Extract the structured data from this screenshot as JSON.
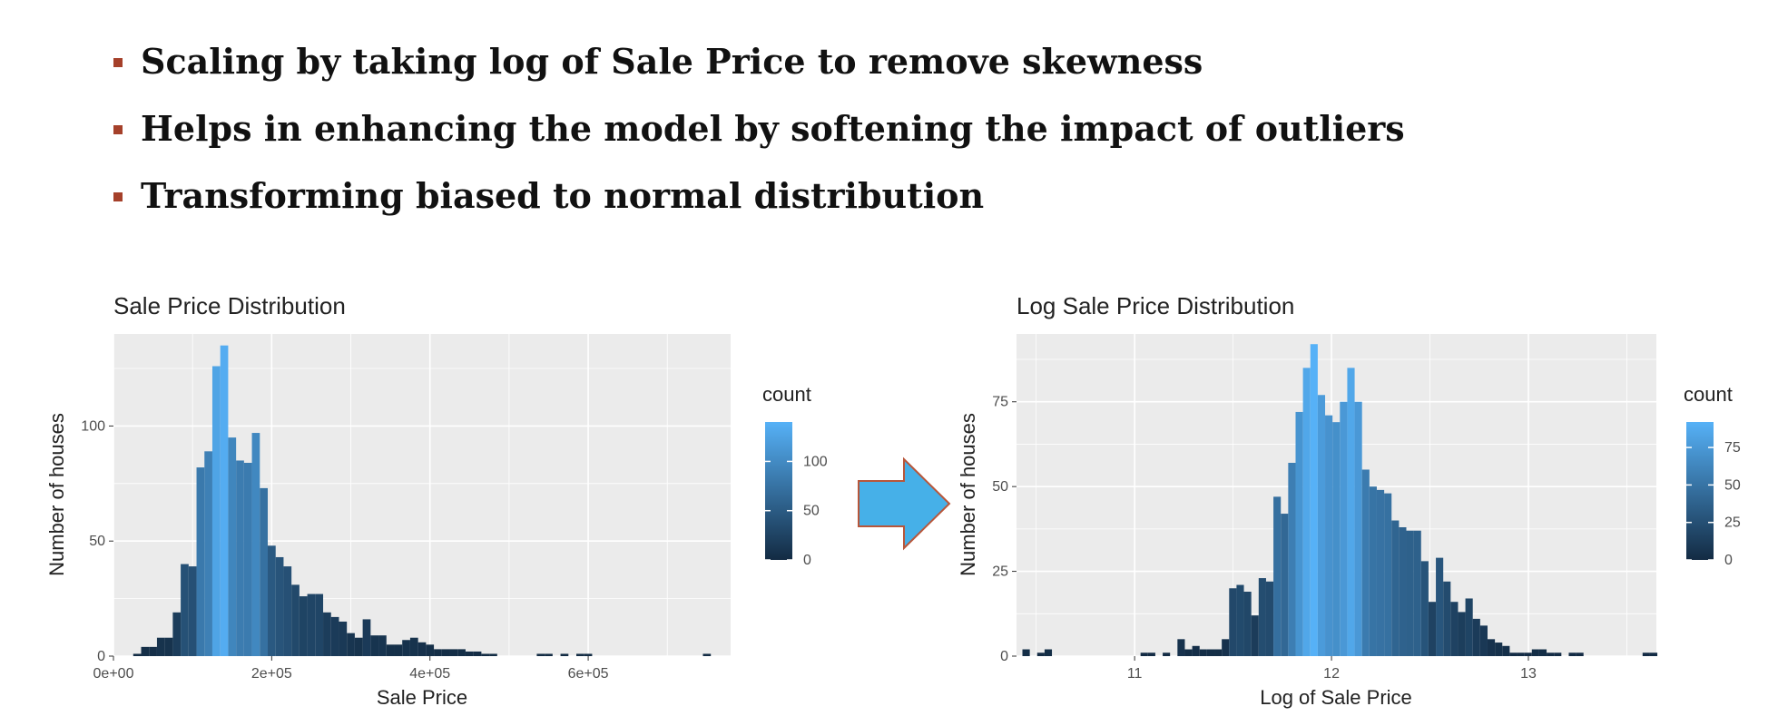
{
  "bullets": [
    "Scaling by taking log of Sale Price to remove skewness",
    "Helps in enhancing the model by softening the impact of outliers",
    "Transforming biased to normal distribution"
  ],
  "colors": {
    "bullet": "#a5402a",
    "panel": "#ebebeb",
    "low": "#132b43",
    "high": "#56b1f7",
    "arrow": "#46b0e8",
    "arrow_border": "#b8563a"
  },
  "arrow_icon": "right-arrow-icon",
  "chart_data": [
    {
      "type": "bar",
      "title": "Sale Price Distribution",
      "xlabel": "Sale Price",
      "ylabel": "Number of houses",
      "xlim": [
        0,
        780000
      ],
      "ylim": [
        0,
        140
      ],
      "x_ticks": [
        0,
        200000,
        400000,
        600000
      ],
      "x_tick_labels": [
        "0e+00",
        "2e+05",
        "4e+05",
        "6e+05"
      ],
      "y_ticks": [
        0,
        50,
        100
      ],
      "y_tick_labels": [
        "0",
        "50",
        "100"
      ],
      "grid": true,
      "bin_start": 25000,
      "bin_width": 10000,
      "values": [
        1,
        4,
        4,
        8,
        8,
        19,
        40,
        39,
        82,
        89,
        126,
        135,
        95,
        85,
        84,
        97,
        73,
        48,
        43,
        39,
        31,
        26,
        27,
        27,
        19,
        17,
        15,
        10,
        8,
        16,
        9,
        9,
        5,
        5,
        7,
        8,
        6,
        5,
        3,
        3,
        3,
        3,
        2,
        2,
        1,
        1,
        0,
        0,
        0,
        0,
        0,
        1,
        1,
        0,
        1,
        0,
        1,
        1,
        0,
        0,
        0,
        0,
        0,
        0,
        0,
        0,
        0,
        0,
        0,
        0,
        0,
        0,
        1
      ],
      "legend": {
        "title": "count",
        "max": 140,
        "ticks": [
          0,
          50,
          100
        ],
        "tick_labels": [
          "0",
          "50",
          "100"
        ],
        "position": "right"
      }
    },
    {
      "type": "bar",
      "title": "Log Sale Price Distribution",
      "xlabel": "Log of Sale Price",
      "ylabel": "Number of houses",
      "xlim": [
        10.4,
        13.65
      ],
      "ylim": [
        0,
        95
      ],
      "x_ticks": [
        11,
        12,
        13
      ],
      "x_tick_labels": [
        "11",
        "12",
        "13"
      ],
      "y_ticks": [
        0,
        25,
        50,
        75
      ],
      "y_tick_labels": [
        "0",
        "25",
        "50",
        "75"
      ],
      "grid": true,
      "bin_start": 10.43,
      "bin_width": 0.0375,
      "values": [
        2,
        0,
        1,
        2,
        0,
        0,
        0,
        0,
        0,
        0,
        0,
        0,
        0,
        0,
        0,
        0,
        1,
        1,
        0,
        1,
        0,
        5,
        2,
        3,
        2,
        2,
        2,
        5,
        20,
        21,
        19,
        12,
        23,
        22,
        47,
        42,
        57,
        72,
        85,
        92,
        77,
        71,
        69,
        75,
        85,
        75,
        55,
        50,
        49,
        48,
        40,
        38,
        37,
        37,
        28,
        16,
        29,
        22,
        16,
        13,
        17,
        11,
        9,
        5,
        4,
        3,
        1,
        1,
        1,
        2,
        2,
        1,
        1,
        0,
        1,
        1,
        0,
        0,
        0,
        0,
        0,
        0,
        0,
        0,
        1,
        1
      ],
      "legend": {
        "title": "count",
        "max": 92,
        "ticks": [
          0,
          25,
          50,
          75
        ],
        "tick_labels": [
          "0",
          "25",
          "50",
          "75"
        ],
        "position": "right"
      }
    }
  ]
}
